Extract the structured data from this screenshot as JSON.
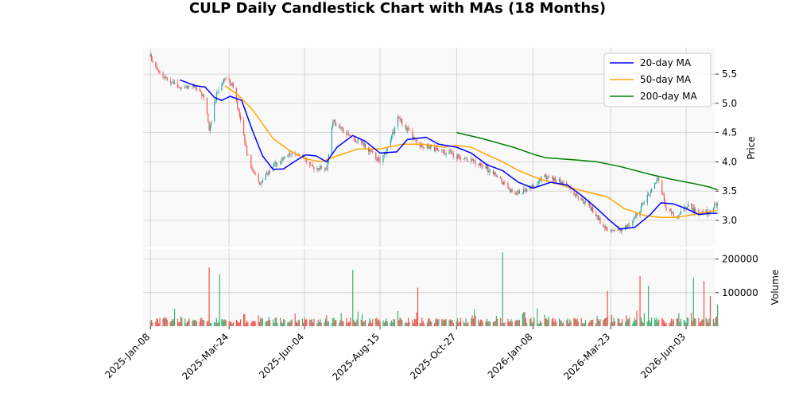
{
  "chart_data": {
    "type": "candlestick",
    "title": "CULP Daily Candlestick Chart with MAs (18 Months)",
    "price_panel": {
      "ylabel": "Price",
      "ylim": [
        2.55,
        5.95
      ],
      "yticks": [
        3.0,
        3.5,
        4.0,
        4.5,
        5.0,
        5.5
      ],
      "ytick_labels": [
        "3.0",
        "3.5",
        "4.0",
        "4.5",
        "5.0",
        "5.5"
      ],
      "grid": true
    },
    "volume_panel": {
      "ylabel": "Volume",
      "ylim": [
        0,
        230000
      ],
      "yticks": [
        100000,
        200000
      ],
      "ytick_labels": [
        "100000",
        "200000"
      ],
      "grid": true
    },
    "x_axis": {
      "range": [
        "2025-01-01",
        "2026-07-01"
      ],
      "ticks": [
        "2025-01-08",
        "2025-03-24",
        "2025-06-04",
        "2025-08-15",
        "2025-10-27",
        "2026-01-08",
        "2026-03-23",
        "2026-06-03"
      ],
      "tick_labels": [
        "2025-Jan-08",
        "2025-Mar-24",
        "2025-Jun-04",
        "2025-Aug-15",
        "2025-Oct-27",
        "2026-Jan-08",
        "2026-Mar-23",
        "2026-Jun-03"
      ]
    },
    "legend": {
      "position": "top-right",
      "entries": [
        {
          "label": "20-day MA",
          "color": "#0000ff"
        },
        {
          "label": "50-day MA",
          "color": "#ffa500"
        },
        {
          "label": "200-day MA",
          "color": "#008000"
        }
      ]
    },
    "colors": {
      "up": "#26a69a",
      "down": "#ef5350",
      "up_volume": "#3cb371",
      "down_volume": "#ef5350"
    },
    "price_anchors": [
      [
        "2025-01-08",
        5.8
      ],
      [
        "2025-01-20",
        5.45
      ],
      [
        "2025-02-05",
        5.3
      ],
      [
        "2025-02-20",
        5.28
      ],
      [
        "2025-03-01",
        5.05
      ],
      [
        "2025-03-05",
        4.55
      ],
      [
        "2025-03-12",
        5.15
      ],
      [
        "2025-03-20",
        5.45
      ],
      [
        "2025-03-28",
        5.3
      ],
      [
        "2025-04-05",
        4.6
      ],
      [
        "2025-04-12",
        4.0
      ],
      [
        "2025-04-22",
        3.6
      ],
      [
        "2025-05-05",
        3.95
      ],
      [
        "2025-05-20",
        4.1
      ],
      [
        "2025-06-01",
        4.15
      ],
      [
        "2025-06-10",
        3.9
      ],
      [
        "2025-06-25",
        3.9
      ],
      [
        "2025-07-01",
        4.7
      ],
      [
        "2025-07-15",
        4.45
      ],
      [
        "2025-07-30",
        4.3
      ],
      [
        "2025-08-15",
        4.0
      ],
      [
        "2025-08-25",
        4.35
      ],
      [
        "2025-09-01",
        4.75
      ],
      [
        "2025-09-10",
        4.55
      ],
      [
        "2025-09-20",
        4.3
      ],
      [
        "2025-10-01",
        4.25
      ],
      [
        "2025-10-20",
        4.15
      ],
      [
        "2025-11-05",
        4.05
      ],
      [
        "2025-11-20",
        3.95
      ],
      [
        "2025-12-05",
        3.75
      ],
      [
        "2025-12-20",
        3.45
      ],
      [
        "2026-01-05",
        3.55
      ],
      [
        "2026-01-20",
        3.75
      ],
      [
        "2026-02-05",
        3.65
      ],
      [
        "2026-02-20",
        3.4
      ],
      [
        "2026-03-05",
        3.2
      ],
      [
        "2026-03-20",
        2.8
      ],
      [
        "2026-04-01",
        2.85
      ],
      [
        "2026-04-10",
        2.9
      ],
      [
        "2026-04-20",
        3.2
      ],
      [
        "2026-05-01",
        3.55
      ],
      [
        "2026-05-08",
        3.7
      ],
      [
        "2026-05-15",
        3.2
      ],
      [
        "2026-05-25",
        3.05
      ],
      [
        "2026-06-05",
        3.25
      ],
      [
        "2026-06-15",
        3.1
      ],
      [
        "2026-06-25",
        3.15
      ],
      [
        "2026-07-03",
        3.3
      ]
    ],
    "ma20": [
      [
        "2025-02-05",
        5.4
      ],
      [
        "2025-02-20",
        5.3
      ],
      [
        "2025-03-01",
        5.28
      ],
      [
        "2025-03-10",
        5.1
      ],
      [
        "2025-03-17",
        5.05
      ],
      [
        "2025-03-25",
        5.12
      ],
      [
        "2025-04-05",
        5.05
      ],
      [
        "2025-04-15",
        4.55
      ],
      [
        "2025-04-25",
        4.1
      ],
      [
        "2025-05-05",
        3.87
      ],
      [
        "2025-05-15",
        3.88
      ],
      [
        "2025-05-25",
        4.0
      ],
      [
        "2025-06-05",
        4.12
      ],
      [
        "2025-06-15",
        4.1
      ],
      [
        "2025-06-25",
        4.0
      ],
      [
        "2025-07-05",
        4.25
      ],
      [
        "2025-07-20",
        4.45
      ],
      [
        "2025-08-01",
        4.35
      ],
      [
        "2025-08-15",
        4.15
      ],
      [
        "2025-08-31",
        4.17
      ],
      [
        "2025-09-10",
        4.38
      ],
      [
        "2025-09-28",
        4.42
      ],
      [
        "2025-10-10",
        4.3
      ],
      [
        "2025-10-27",
        4.25
      ],
      [
        "2025-11-10",
        4.15
      ],
      [
        "2025-11-25",
        3.95
      ],
      [
        "2025-12-10",
        3.85
      ],
      [
        "2025-12-25",
        3.65
      ],
      [
        "2026-01-08",
        3.55
      ],
      [
        "2026-01-25",
        3.65
      ],
      [
        "2026-02-10",
        3.6
      ],
      [
        "2026-02-25",
        3.4
      ],
      [
        "2026-03-10",
        3.2
      ],
      [
        "2026-03-22",
        3.0
      ],
      [
        "2026-04-01",
        2.85
      ],
      [
        "2026-04-15",
        2.88
      ],
      [
        "2026-04-30",
        3.1
      ],
      [
        "2026-05-10",
        3.3
      ],
      [
        "2026-05-22",
        3.28
      ],
      [
        "2026-06-03",
        3.2
      ],
      [
        "2026-06-15",
        3.1
      ],
      [
        "2026-06-25",
        3.12
      ],
      [
        "2026-07-03",
        3.12
      ]
    ],
    "ma50": [
      [
        "2025-03-20",
        5.3
      ],
      [
        "2025-04-01",
        5.15
      ],
      [
        "2025-04-15",
        4.9
      ],
      [
        "2025-05-05",
        4.4
      ],
      [
        "2025-05-20",
        4.2
      ],
      [
        "2025-06-05",
        4.05
      ],
      [
        "2025-06-20",
        4.0
      ],
      [
        "2025-07-05",
        4.1
      ],
      [
        "2025-07-25",
        4.22
      ],
      [
        "2025-08-15",
        4.22
      ],
      [
        "2025-09-05",
        4.3
      ],
      [
        "2025-09-25",
        4.3
      ],
      [
        "2025-10-15",
        4.25
      ],
      [
        "2025-10-27",
        4.28
      ],
      [
        "2025-11-10",
        4.25
      ],
      [
        "2025-11-25",
        4.12
      ],
      [
        "2025-12-10",
        4.0
      ],
      [
        "2025-12-25",
        3.85
      ],
      [
        "2026-01-15",
        3.7
      ],
      [
        "2026-02-05",
        3.6
      ],
      [
        "2026-02-25",
        3.5
      ],
      [
        "2026-03-20",
        3.4
      ],
      [
        "2026-04-05",
        3.2
      ],
      [
        "2026-04-25",
        3.08
      ],
      [
        "2026-05-10",
        3.05
      ],
      [
        "2026-05-25",
        3.05
      ],
      [
        "2026-06-10",
        3.1
      ],
      [
        "2026-06-25",
        3.15
      ],
      [
        "2026-07-03",
        3.17
      ]
    ],
    "ma200": [
      [
        "2025-10-27",
        4.5
      ],
      [
        "2025-11-20",
        4.4
      ],
      [
        "2025-12-20",
        4.25
      ],
      [
        "2026-01-10",
        4.12
      ],
      [
        "2026-01-20",
        4.07
      ],
      [
        "2026-02-20",
        4.03
      ],
      [
        "2026-03-10",
        4.0
      ],
      [
        "2026-04-01",
        3.92
      ],
      [
        "2026-05-01",
        3.78
      ],
      [
        "2026-05-20",
        3.7
      ],
      [
        "2026-06-10",
        3.63
      ],
      [
        "2026-06-25",
        3.57
      ],
      [
        "2026-07-03",
        3.52
      ]
    ],
    "volume_spikes": [
      [
        "2025-03-05",
        175000,
        "down"
      ],
      [
        "2025-03-15",
        155000,
        "up"
      ],
      [
        "2025-07-20",
        168000,
        "up"
      ],
      [
        "2025-09-20",
        115000,
        "down"
      ],
      [
        "2025-12-10",
        220000,
        "up"
      ],
      [
        "2026-03-20",
        105000,
        "down"
      ],
      [
        "2026-04-20",
        150000,
        "down"
      ],
      [
        "2026-04-28",
        120000,
        "up"
      ],
      [
        "2026-06-10",
        145000,
        "up"
      ],
      [
        "2026-06-20",
        135000,
        "down"
      ],
      [
        "2026-06-26",
        90000,
        "down"
      ],
      [
        "2026-07-03",
        65000,
        "up"
      ]
    ]
  }
}
